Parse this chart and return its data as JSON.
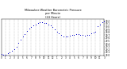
{
  "title": "Milwaukee Weather Barometric Pressure\nper Minute\n(24 Hours)",
  "title_fontsize": 2.5,
  "bg_color": "#ffffff",
  "plot_bg_color": "#ffffff",
  "dot_color": "#0000cc",
  "dot_size": 0.5,
  "grid_color": "#888888",
  "tick_label_fontsize": 2.0,
  "ylabel_fontsize": 2.0,
  "ylim": [
    29.0,
    30.25
  ],
  "yticks": [
    29.0,
    29.1,
    29.2,
    29.3,
    29.4,
    29.5,
    29.6,
    29.7,
    29.8,
    29.9,
    30.0,
    30.1,
    30.2
  ],
  "xlim": [
    0,
    1440
  ],
  "xtick_positions": [
    0,
    60,
    120,
    180,
    240,
    300,
    360,
    420,
    480,
    540,
    600,
    660,
    720,
    780,
    840,
    900,
    960,
    1020,
    1080,
    1140,
    1200,
    1260,
    1320,
    1380,
    1440
  ],
  "xtick_labels": [
    "0",
    "1",
    "2",
    "3",
    "4",
    "5",
    "6",
    "7",
    "8",
    "9",
    "10",
    "11",
    "12",
    "1",
    "2",
    "3",
    "4",
    "5",
    "6",
    "7",
    "8",
    "9",
    "10",
    "11",
    "3"
  ],
  "data_x": [
    0,
    30,
    60,
    90,
    120,
    150,
    180,
    210,
    240,
    270,
    300,
    330,
    360,
    390,
    420,
    450,
    480,
    510,
    540,
    570,
    600,
    630,
    660,
    690,
    720,
    750,
    780,
    810,
    840,
    870,
    900,
    930,
    960,
    990,
    1020,
    1050,
    1080,
    1110,
    1140,
    1170,
    1200,
    1230,
    1260,
    1290,
    1320,
    1350,
    1380,
    1410,
    1440
  ],
  "data_y": [
    29.04,
    29.02,
    29.03,
    29.06,
    29.1,
    29.16,
    29.22,
    29.3,
    29.42,
    29.55,
    29.65,
    29.74,
    29.84,
    29.92,
    29.98,
    30.03,
    30.08,
    30.12,
    30.14,
    30.15,
    30.13,
    30.11,
    30.08,
    30.04,
    29.98,
    29.9,
    29.82,
    29.75,
    29.7,
    29.66,
    29.64,
    29.65,
    29.68,
    29.7,
    29.72,
    29.74,
    29.73,
    29.72,
    29.7,
    29.68,
    29.7,
    29.72,
    29.75,
    29.78,
    29.82,
    30.0,
    30.08,
    30.14,
    30.18
  ],
  "vgrid_positions": [
    60,
    120,
    180,
    240,
    300,
    360,
    420,
    480,
    540,
    600,
    660,
    720,
    780,
    840,
    900,
    960,
    1020,
    1080,
    1140,
    1200,
    1260,
    1320,
    1380
  ]
}
